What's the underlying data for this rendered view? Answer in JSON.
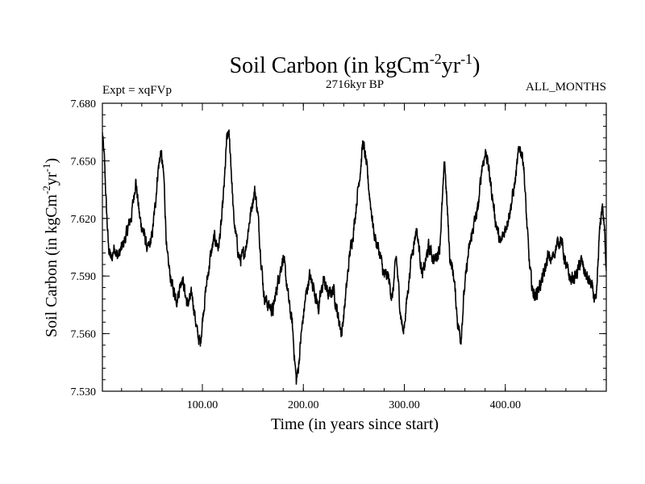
{
  "chart_data": {
    "type": "line",
    "title_main": "Soil Carbon (in kgCm",
    "title_sup1": "-2",
    "title_mid": "yr",
    "title_sup2": "-1",
    "title_end": ")",
    "subtitle": "2716kyr BP",
    "left_label": "Expt = xqFVp",
    "right_label": "ALL_MONTHS",
    "xlabel": "Time (in years since start)",
    "ylabel_main": "Soil Carbon (in kgCm",
    "ylabel_sup1": "-2",
    "ylabel_mid": "yr",
    "ylabel_sup2": "-1",
    "ylabel_end": ")",
    "xlim": [
      1,
      500
    ],
    "ylim": [
      7.53,
      7.68
    ],
    "x_ticks": [
      {
        "value": 100,
        "label": "100.00"
      },
      {
        "value": 200,
        "label": "200.00"
      },
      {
        "value": 300,
        "label": "300.00"
      },
      {
        "value": 400,
        "label": "400.00"
      }
    ],
    "y_ticks": [
      {
        "value": 7.53,
        "label": "7.530"
      },
      {
        "value": 7.56,
        "label": "7.560"
      },
      {
        "value": 7.59,
        "label": "7.590"
      },
      {
        "value": 7.62,
        "label": "7.620"
      },
      {
        "value": 7.65,
        "label": "7.650"
      },
      {
        "value": 7.68,
        "label": "7.680"
      }
    ],
    "x_minor_step": 20,
    "y_minor_step": 0.006,
    "series": [
      {
        "name": "Soil Carbon",
        "x": [
          1,
          3,
          5,
          7,
          10,
          13,
          16,
          20,
          25,
          30,
          34,
          38,
          42,
          46,
          50,
          53,
          56,
          59,
          62,
          65,
          70,
          75,
          80,
          85,
          90,
          95,
          98,
          101,
          104,
          108,
          112,
          116,
          119,
          122,
          124,
          126,
          128,
          131,
          134,
          137,
          140,
          143,
          147,
          150,
          152,
          155,
          158,
          161,
          165,
          170,
          175,
          180,
          183,
          186,
          189,
          191,
          193,
          195,
          198,
          202,
          206,
          210,
          215,
          220,
          225,
          230,
          234,
          238,
          242,
          246,
          250,
          254,
          257,
          259,
          262,
          266,
          270,
          275,
          280,
          284,
          288,
          292,
          296,
          299,
          303,
          307,
          312,
          318,
          324,
          330,
          335,
          340,
          345,
          349,
          353,
          356,
          359,
          363,
          368,
          373,
          377,
          381,
          385,
          390,
          395,
          400,
          405,
          410,
          414,
          418,
          421,
          424,
          427,
          430,
          434,
          438,
          442,
          446,
          450,
          455,
          460,
          465,
          470,
          475,
          480,
          485,
          490,
          493,
          496,
          498,
          500
        ],
        "values": [
          7.664,
          7.65,
          7.625,
          7.605,
          7.598,
          7.606,
          7.6,
          7.604,
          7.612,
          7.622,
          7.64,
          7.62,
          7.612,
          7.603,
          7.61,
          7.625,
          7.645,
          7.655,
          7.64,
          7.6,
          7.585,
          7.578,
          7.59,
          7.575,
          7.58,
          7.56,
          7.555,
          7.572,
          7.585,
          7.6,
          7.61,
          7.605,
          7.618,
          7.64,
          7.66,
          7.665,
          7.652,
          7.62,
          7.608,
          7.598,
          7.6,
          7.605,
          7.62,
          7.63,
          7.635,
          7.622,
          7.6,
          7.58,
          7.575,
          7.572,
          7.588,
          7.6,
          7.588,
          7.575,
          7.565,
          7.55,
          7.535,
          7.542,
          7.56,
          7.578,
          7.59,
          7.585,
          7.573,
          7.588,
          7.58,
          7.583,
          7.57,
          7.56,
          7.58,
          7.602,
          7.615,
          7.635,
          7.648,
          7.66,
          7.65,
          7.63,
          7.612,
          7.603,
          7.59,
          7.59,
          7.578,
          7.6,
          7.572,
          7.56,
          7.58,
          7.6,
          7.615,
          7.59,
          7.605,
          7.598,
          7.605,
          7.65,
          7.6,
          7.59,
          7.565,
          7.557,
          7.58,
          7.6,
          7.615,
          7.625,
          7.648,
          7.655,
          7.64,
          7.62,
          7.606,
          7.615,
          7.625,
          7.64,
          7.658,
          7.65,
          7.62,
          7.595,
          7.582,
          7.58,
          7.585,
          7.59,
          7.6,
          7.598,
          7.605,
          7.61,
          7.595,
          7.588,
          7.59,
          7.598,
          7.59,
          7.585,
          7.575,
          7.61,
          7.628,
          7.615,
          7.595
        ]
      }
    ]
  }
}
